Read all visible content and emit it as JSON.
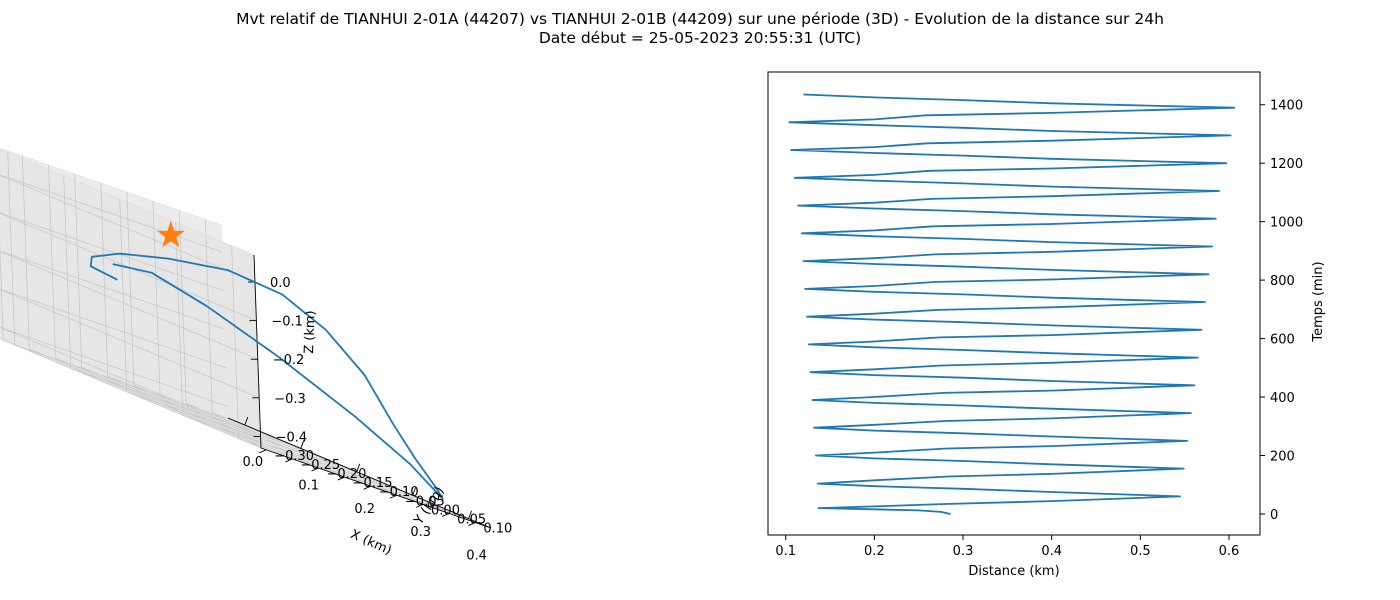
{
  "figure": {
    "title": "Mvt relatif de TIANHUI 2-01A (44207) vs TIANHUI 2-01B (44209) sur une période (3D) - Evolution de la distance sur 24h",
    "subtitle": "Date début = 25-05-2023 20:55:31 (UTC)"
  },
  "colors": {
    "line": "#1f77b4",
    "marker": "#ff7f0e"
  },
  "chart_data": [
    {
      "type": "line3d",
      "xlabel": "X (km)",
      "ylabel": "Y (km)",
      "zlabel": "Z (km)",
      "x_ticks": [
        "0.0",
        "0.1",
        "0.2",
        "0.3",
        "0.4"
      ],
      "y_ticks": [
        "−0.30",
        "−0.25",
        "−0.20",
        "−0.15",
        "−0.10",
        "−0.05",
        "0.00",
        "0.05",
        "0.10"
      ],
      "z_ticks": [
        "0.0",
        "−0.1",
        "−0.2",
        "−0.3",
        "−0.4"
      ],
      "xlim": [
        -0.03,
        0.44
      ],
      "ylim": [
        -0.31,
        0.13
      ],
      "zlim": [
        -0.43,
        0.07
      ],
      "points": [
        {
          "x": 0.05,
          "y": -0.16,
          "z": -0.16
        },
        {
          "x": 0.04,
          "y": -0.2,
          "z": -0.15
        },
        {
          "x": 0.08,
          "y": -0.24,
          "z": -0.12
        },
        {
          "x": 0.14,
          "y": -0.25,
          "z": -0.08
        },
        {
          "x": 0.22,
          "y": -0.24,
          "z": -0.04
        },
        {
          "x": 0.28,
          "y": -0.19,
          "z": -0.01
        },
        {
          "x": 0.32,
          "y": -0.13,
          "z": -0.02
        },
        {
          "x": 0.35,
          "y": -0.08,
          "z": -0.07
        },
        {
          "x": 0.38,
          "y": -0.04,
          "z": -0.15
        },
        {
          "x": 0.4,
          "y": -0.01,
          "z": -0.25
        },
        {
          "x": 0.41,
          "y": 0.02,
          "z": -0.32
        },
        {
          "x": 0.42,
          "y": 0.05,
          "z": -0.38
        },
        {
          "x": 0.42,
          "y": 0.06,
          "z": -0.4
        },
        {
          "x": 0.4,
          "y": 0.02,
          "z": -0.34
        },
        {
          "x": 0.36,
          "y": -0.04,
          "z": -0.27
        },
        {
          "x": 0.29,
          "y": -0.11,
          "z": -0.19
        },
        {
          "x": 0.22,
          "y": -0.17,
          "z": -0.13
        },
        {
          "x": 0.15,
          "y": -0.2,
          "z": -0.1
        },
        {
          "x": 0.08,
          "y": -0.2,
          "z": -0.12
        }
      ],
      "marker": {
        "x": 0.0,
        "y": 0.0,
        "z": 0.0,
        "shape": "star"
      }
    },
    {
      "type": "line",
      "xlabel": "Distance (km)",
      "ylabel": "Temps (min)",
      "xlim": [
        0.08,
        0.635
      ],
      "ylim": [
        -72,
        1512
      ],
      "x_ticks": [
        0.1,
        0.2,
        0.3,
        0.4,
        0.5,
        0.6
      ],
      "y_ticks": [
        0,
        200,
        400,
        600,
        800,
        1000,
        1200,
        1400
      ],
      "grid": false,
      "series": [
        {
          "x": [
            0.286,
            0.275,
            0.25,
            0.2,
            0.137,
            0.2,
            0.28,
            0.4,
            0.545,
            0.4,
            0.3,
            0.2,
            0.136,
            0.2,
            0.284,
            0.4,
            0.549,
            0.4,
            0.3,
            0.2,
            0.134,
            0.2,
            0.282,
            0.4,
            0.553,
            0.4,
            0.3,
            0.2,
            0.132,
            0.2,
            0.28,
            0.4,
            0.557,
            0.4,
            0.3,
            0.2,
            0.13,
            0.2,
            0.278,
            0.4,
            0.561,
            0.4,
            0.3,
            0.2,
            0.128,
            0.2,
            0.276,
            0.4,
            0.565,
            0.4,
            0.3,
            0.2,
            0.126,
            0.2,
            0.274,
            0.4,
            0.569,
            0.4,
            0.3,
            0.2,
            0.124,
            0.2,
            0.272,
            0.4,
            0.573,
            0.4,
            0.3,
            0.2,
            0.122,
            0.2,
            0.27,
            0.4,
            0.577,
            0.4,
            0.3,
            0.2,
            0.12,
            0.2,
            0.268,
            0.4,
            0.581,
            0.4,
            0.3,
            0.2,
            0.118,
            0.2,
            0.266,
            0.4,
            0.585,
            0.4,
            0.3,
            0.2,
            0.114,
            0.2,
            0.264,
            0.4,
            0.589,
            0.4,
            0.3,
            0.2,
            0.11,
            0.2,
            0.262,
            0.4,
            0.597,
            0.4,
            0.3,
            0.2,
            0.106,
            0.2,
            0.26,
            0.4,
            0.602,
            0.4,
            0.3,
            0.2,
            0.104,
            0.2,
            0.258,
            0.4,
            0.606,
            0.4,
            0.3,
            0.2,
            0.12
          ],
          "y": [
            0,
            7,
            12,
            16,
            20,
            26,
            34,
            44,
            60,
            75,
            86,
            95,
            104,
            115,
            128,
            137,
            155,
            170,
            181,
            190,
            200,
            210,
            224,
            232,
            250,
            265,
            276,
            285,
            295,
            305,
            318,
            327,
            345,
            360,
            371,
            380,
            390,
            400,
            414,
            422,
            440,
            455,
            466,
            475,
            485,
            495,
            508,
            517,
            535,
            550,
            561,
            570,
            580,
            590,
            604,
            612,
            630,
            645,
            656,
            665,
            675,
            685,
            698,
            707,
            725,
            740,
            751,
            760,
            770,
            780,
            794,
            802,
            820,
            835,
            846,
            855,
            865,
            875,
            888,
            897,
            915,
            930,
            941,
            950,
            960,
            970,
            984,
            992,
            1010,
            1025,
            1036,
            1045,
            1055,
            1065,
            1078,
            1087,
            1105,
            1120,
            1131,
            1140,
            1150,
            1160,
            1174,
            1182,
            1200,
            1215,
            1226,
            1235,
            1245,
            1255,
            1268,
            1277,
            1295,
            1310,
            1321,
            1330,
            1340,
            1350,
            1364,
            1372,
            1390,
            1405,
            1416,
            1425,
            1435
          ]
        }
      ]
    }
  ]
}
